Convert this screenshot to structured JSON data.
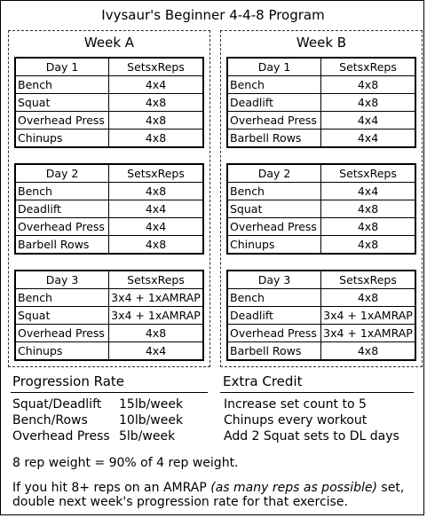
{
  "title": "Ivysaur's Beginner 4-4-8 Program",
  "weeks": [
    {
      "name": "Week A",
      "days": [
        {
          "day": "Day 1",
          "col": "SetsxReps",
          "rows": [
            [
              "Bench",
              "4x4"
            ],
            [
              "Squat",
              "4x8"
            ],
            [
              "Overhead Press",
              "4x8"
            ],
            [
              "Chinups",
              "4x8"
            ]
          ]
        },
        {
          "day": "Day 2",
          "col": "SetsxReps",
          "rows": [
            [
              "Bench",
              "4x8"
            ],
            [
              "Deadlift",
              "4x4"
            ],
            [
              "Overhead Press",
              "4x4"
            ],
            [
              "Barbell Rows",
              "4x8"
            ]
          ]
        },
        {
          "day": "Day 3",
          "col": "SetsxReps",
          "rows": [
            [
              "Bench",
              "3x4 + 1xAMRAP"
            ],
            [
              "Squat",
              "3x4 + 1xAMRAP"
            ],
            [
              "Overhead Press",
              "4x8"
            ],
            [
              "Chinups",
              "4x4"
            ]
          ]
        }
      ]
    },
    {
      "name": "Week B",
      "days": [
        {
          "day": "Day 1",
          "col": "SetsxReps",
          "rows": [
            [
              "Bench",
              "4x8"
            ],
            [
              "Deadlift",
              "4x8"
            ],
            [
              "Overhead Press",
              "4x4"
            ],
            [
              "Barbell Rows",
              "4x4"
            ]
          ]
        },
        {
          "day": "Day 2",
          "col": "SetsxReps",
          "rows": [
            [
              "Bench",
              "4x4"
            ],
            [
              "Squat",
              "4x8"
            ],
            [
              "Overhead Press",
              "4x8"
            ],
            [
              "Chinups",
              "4x8"
            ]
          ]
        },
        {
          "day": "Day 3",
          "col": "SetsxReps",
          "rows": [
            [
              "Bench",
              "4x8"
            ],
            [
              "Deadlift",
              "3x4 + 1xAMRAP"
            ],
            [
              "Overhead Press",
              "3x4 + 1xAMRAP"
            ],
            [
              "Barbell Rows",
              "4x8"
            ]
          ]
        }
      ]
    }
  ],
  "progression": {
    "heading": "Progression Rate",
    "items": [
      {
        "label": "Squat/Deadlift",
        "value": "15lb/week"
      },
      {
        "label": "Bench/Rows",
        "value": "10lb/week"
      },
      {
        "label": "Overhead Press",
        "value": "5lb/week"
      }
    ]
  },
  "extra_credit": {
    "heading": "Extra Credit",
    "items": [
      "Increase set count to 5",
      "Chinups every workout",
      "Add 2 Squat sets to DL days"
    ]
  },
  "notes": {
    "weight": "8 rep weight = 90% of 4 rep weight.",
    "amrap_pre": "If you hit 8+ reps on an AMRAP",
    "amrap_italic": "(as many reps as possible)",
    "amrap_post": "set,",
    "amrap_line2": "double next week's progression rate for that exercise."
  }
}
